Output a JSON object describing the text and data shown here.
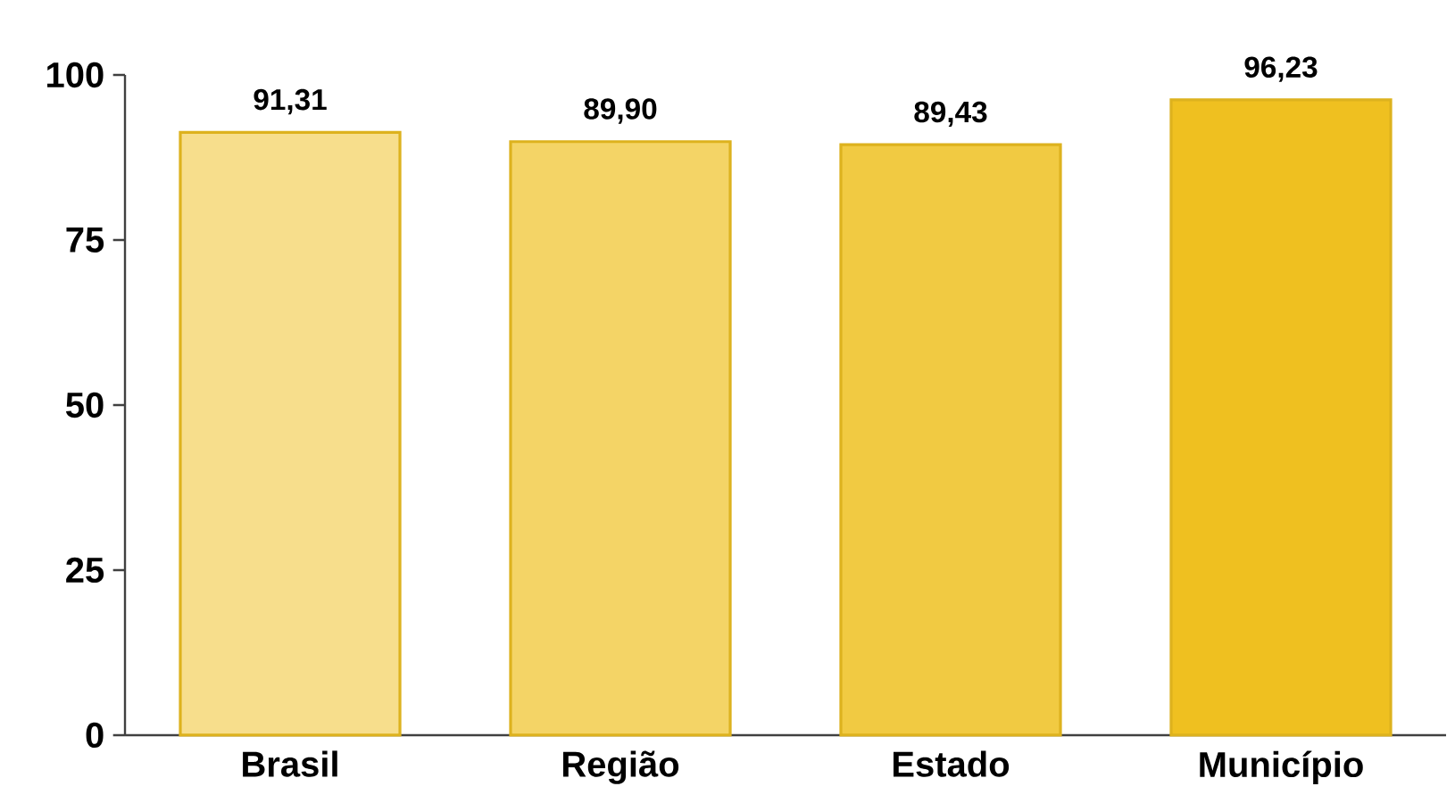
{
  "chart_data": {
    "type": "bar",
    "categories": [
      "Brasil",
      "Região",
      "Estado",
      "Município"
    ],
    "values": [
      91.31,
      89.9,
      89.43,
      96.23
    ],
    "value_labels": [
      "91,31",
      "89,90",
      "89,43",
      "96,23"
    ],
    "colors": [
      "#f7de8c",
      "#f4d466",
      "#f1ca42",
      "#efc020"
    ],
    "ylim": [
      0,
      100
    ],
    "yticks": [
      0,
      25,
      50,
      75,
      100
    ],
    "grid": false
  }
}
